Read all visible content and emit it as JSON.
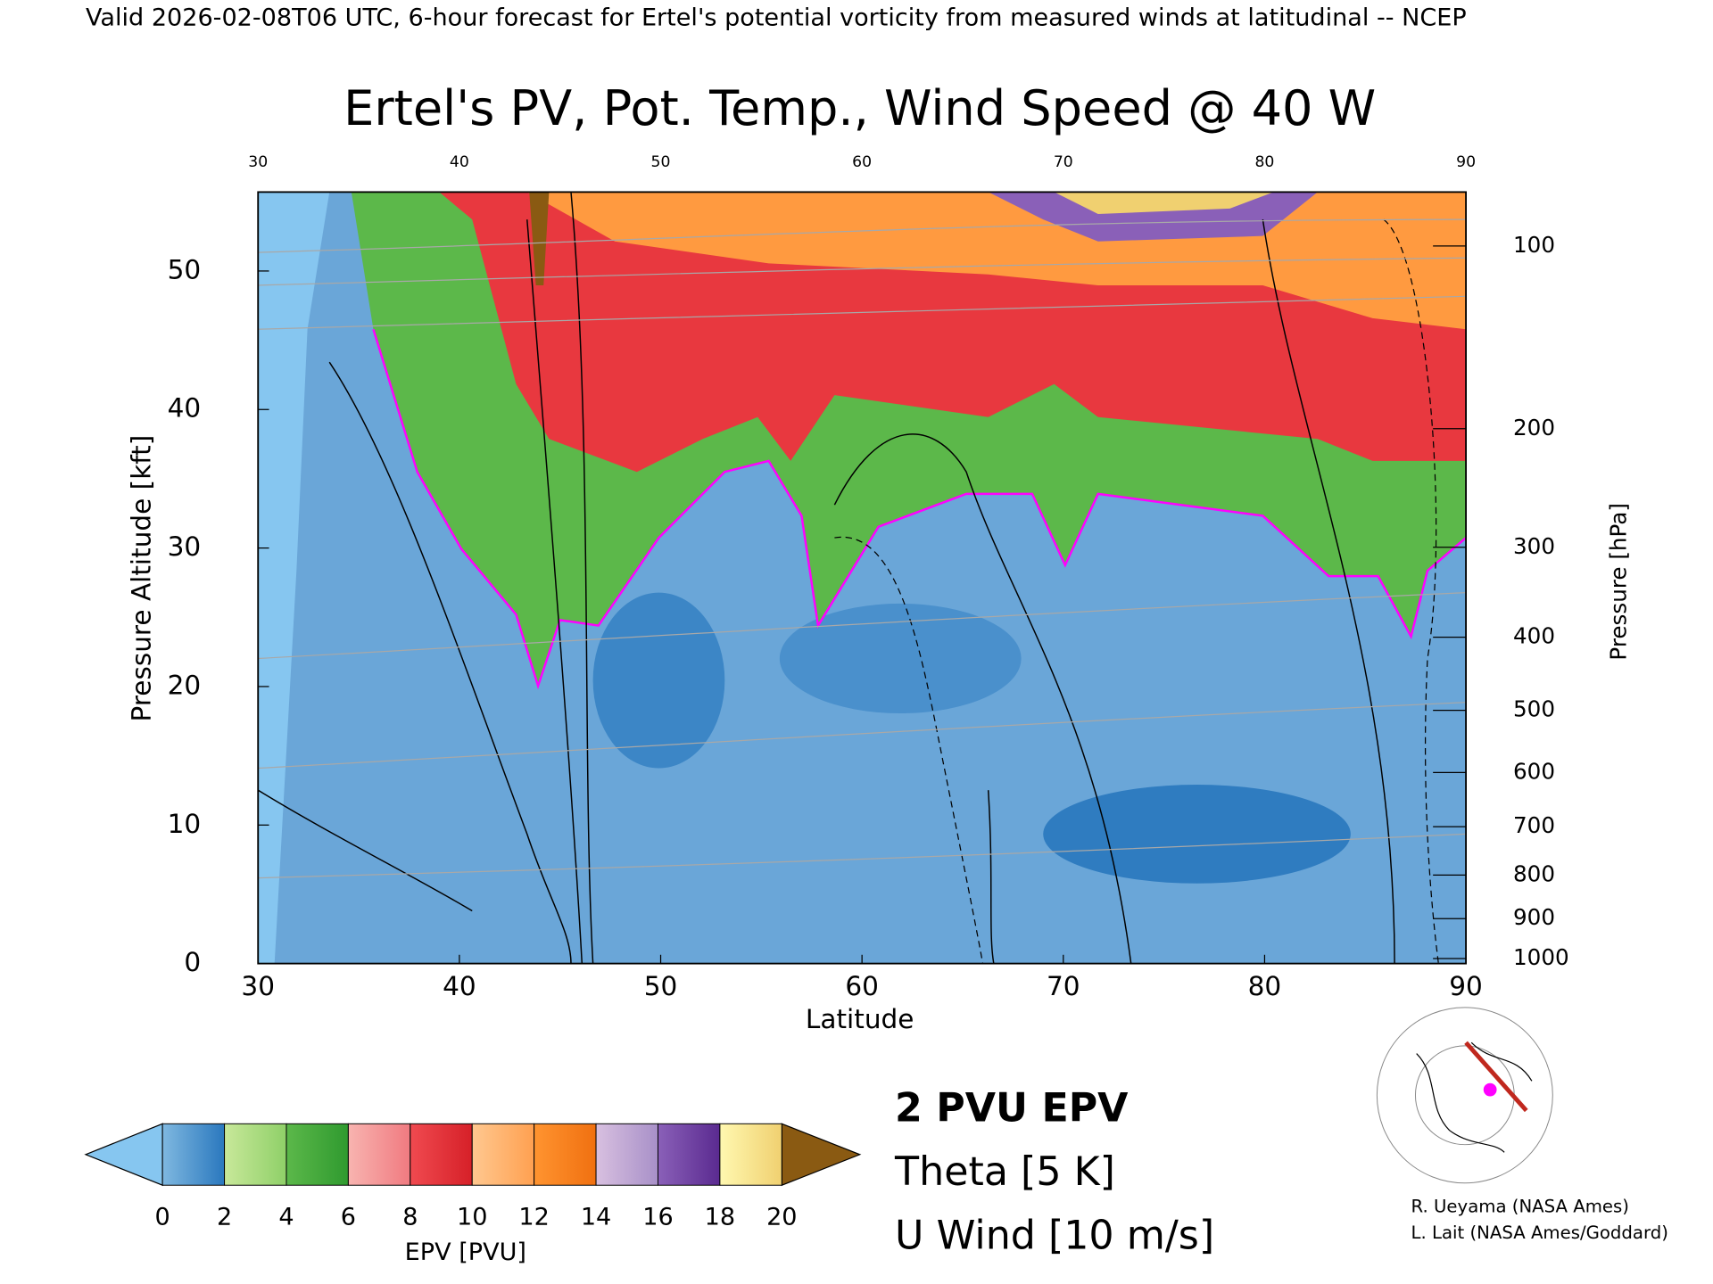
{
  "chart_data": {
    "type": "cross-section",
    "header": "Valid 2026-02-08T06 UTC, 6-hour forecast for Ertel's potential vorticity from measured winds at latitudinal -- NCEP",
    "title": "Ertel's PV, Pot. Temp., Wind Speed @ 40 W",
    "x_label": "Latitude",
    "xlim": [
      30,
      90
    ],
    "xticks": [
      30,
      40,
      50,
      60,
      70,
      80,
      90
    ],
    "y_label": "Pressure Altitude [kft]",
    "ylim": [
      0,
      55.7
    ],
    "yticks": [
      0,
      10,
      20,
      30,
      40,
      50
    ],
    "y2_label": "Pressure [hPa]",
    "y2_scale": "pressure-altitude",
    "y2ticks": [
      100,
      200,
      300,
      400,
      500,
      600,
      700,
      800,
      900,
      1000
    ],
    "colorbar": {
      "label": "EPV [PVU]",
      "ticks": [
        0,
        2,
        4,
        6,
        8,
        10,
        12,
        14,
        16,
        18,
        20
      ],
      "under_color": "#86c6f0",
      "over_color": "#8a5a12",
      "colors": [
        [
          "#7fb8e0",
          "#2a78be"
        ],
        [
          "#c8e89a",
          "#8fd068"
        ],
        [
          "#5cb84a",
          "#2f9a2f"
        ],
        [
          "#f8b4b0",
          "#f07a80"
        ],
        [
          "#f04a50",
          "#d62028"
        ],
        [
          "#ffc890",
          "#ffa050"
        ],
        [
          "#ff9430",
          "#f07010"
        ],
        [
          "#d8c0e0",
          "#a890c8"
        ],
        [
          "#8a60b8",
          "#5a2a90"
        ],
        [
          "#fff8b0",
          "#f0d070"
        ]
      ]
    },
    "legend": [
      {
        "name": "2 PVU EPV",
        "color": "#ff00ff"
      },
      {
        "name": "Theta [5 K]",
        "color": "#a0a0a0"
      },
      {
        "name": "U Wind [10 m/s]",
        "color": "#000000"
      }
    ],
    "credits": [
      "R. Ueyama (NASA Ames)",
      "L. Lait (NASA Ames/Goddard)"
    ]
  }
}
